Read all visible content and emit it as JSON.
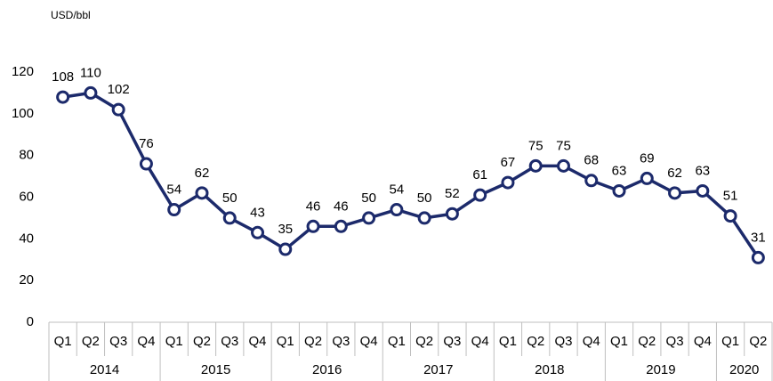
{
  "chart_data": {
    "type": "line",
    "y_label": "USD/bbl",
    "categories": [
      "Q1",
      "Q2",
      "Q3",
      "Q4",
      "Q1",
      "Q2",
      "Q3",
      "Q4",
      "Q1",
      "Q2",
      "Q3",
      "Q4",
      "Q1",
      "Q2",
      "Q3",
      "Q4",
      "Q1",
      "Q2",
      "Q3",
      "Q4",
      "Q1",
      "Q2",
      "Q3",
      "Q4",
      "Q1",
      "Q2"
    ],
    "years": [
      "2014",
      "2014",
      "2014",
      "2014",
      "2015",
      "2015",
      "2015",
      "2015",
      "2016",
      "2016",
      "2016",
      "2016",
      "2017",
      "2017",
      "2017",
      "2017",
      "2018",
      "2018",
      "2018",
      "2018",
      "2019",
      "2019",
      "2019",
      "2019",
      "2020",
      "2020"
    ],
    "values": [
      108,
      110,
      102,
      76,
      54,
      62,
      50,
      43,
      35,
      46,
      46,
      50,
      54,
      50,
      52,
      61,
      67,
      75,
      75,
      68,
      63,
      69,
      62,
      63,
      51,
      31
    ],
    "color": "#1c2a6b",
    "ylim": [
      0,
      120
    ],
    "yticks": [
      0,
      20,
      40,
      60,
      80,
      100,
      120
    ],
    "grid": false
  }
}
